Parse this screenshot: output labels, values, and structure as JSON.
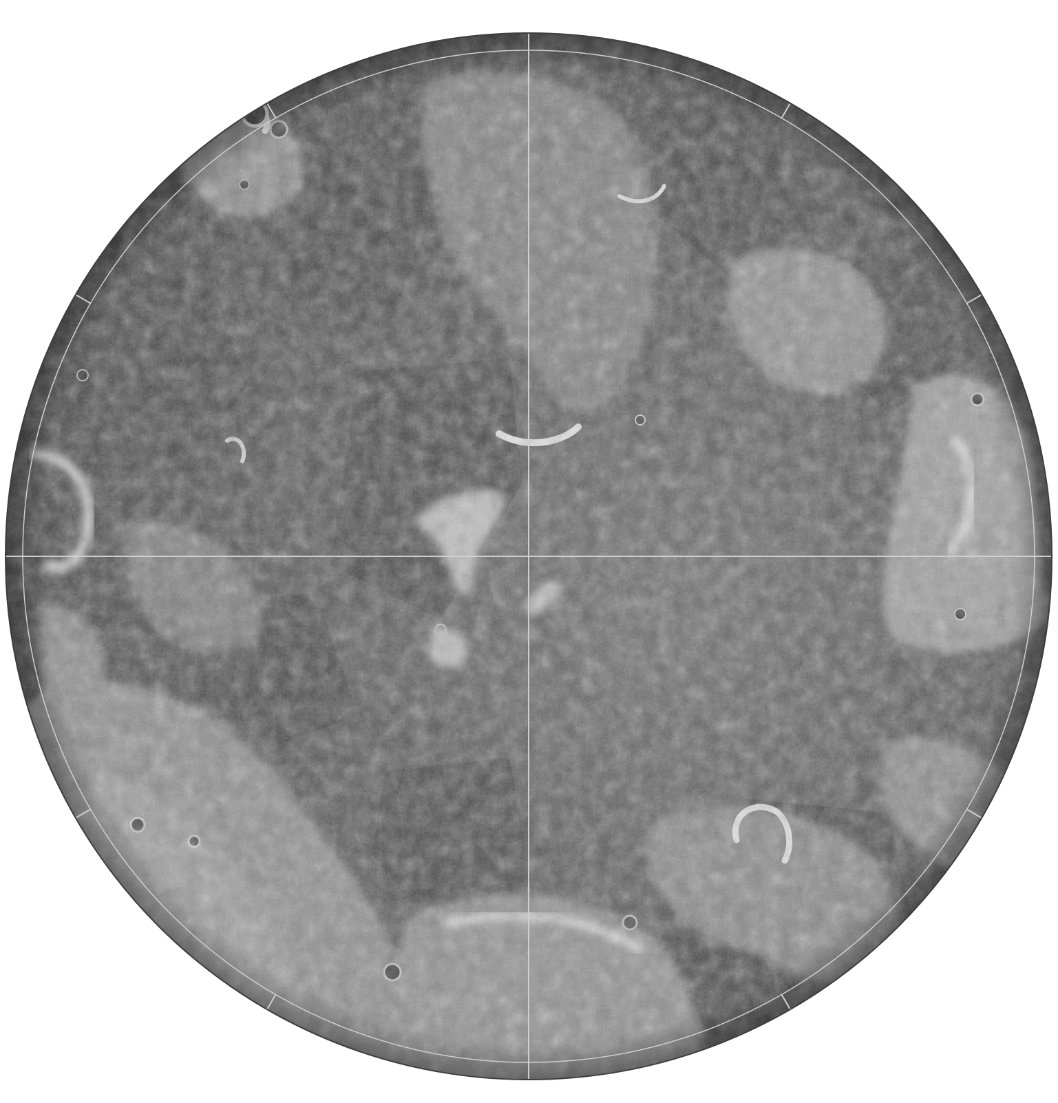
{
  "map": {
    "type": "polar-stereographic-mosaic",
    "body": "moon",
    "projection_center": "pole",
    "graticule": {
      "meridian_lines": 2,
      "latitude_circle": true,
      "tick_marks": 12
    },
    "colors": {
      "background": "#ffffff",
      "surface_base": "#5f5f5f",
      "surface_dark": "#474747",
      "surface_light": "#bcbcbc",
      "highlight": "#e6e6e6",
      "shadow": "#353535",
      "grid_line": "#cfcfcf",
      "limb_edge": "#3d3d3d"
    },
    "labels": []
  }
}
